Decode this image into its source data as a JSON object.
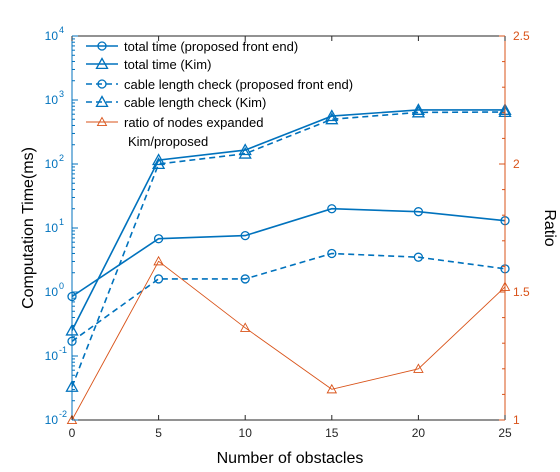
{
  "chart_data": {
    "type": "line",
    "xlabel": "Number of obstacles",
    "ylabel_left": "Computation Time(ms)",
    "ylabel_right": "Ratio",
    "x": [
      0,
      5,
      10,
      15,
      20,
      25
    ],
    "xlim": [
      0,
      25
    ],
    "xticks": [
      "0",
      "5",
      "10",
      "15",
      "20",
      "25"
    ],
    "ylim_left": [
      0.01,
      10000
    ],
    "yscale_left": "log",
    "yticks_left": [
      {
        "base": "10",
        "exp": "-2"
      },
      {
        "base": "10",
        "exp": "-1"
      },
      {
        "base": "10",
        "exp": "0"
      },
      {
        "base": "10",
        "exp": "1"
      },
      {
        "base": "10",
        "exp": "2"
      },
      {
        "base": "10",
        "exp": "3"
      },
      {
        "base": "10",
        "exp": "4"
      }
    ],
    "ylim_right": [
      1,
      2.5
    ],
    "yticks_right": [
      "1",
      "1.5",
      "2",
      "2.5"
    ],
    "colors": {
      "blue": "#0072BD",
      "orange": "#D95319"
    },
    "series": [
      {
        "name": "total time (proposed front end)",
        "axis": "left",
        "marker": "circle",
        "dash": false,
        "color": "#0072BD",
        "values": [
          0.85,
          6.8,
          7.6,
          20,
          18,
          13
        ]
      },
      {
        "name": "total time (Kim)",
        "axis": "left",
        "marker": "triangle",
        "dash": false,
        "color": "#0072BD",
        "values": [
          0.25,
          115,
          165,
          560,
          700,
          700
        ]
      },
      {
        "name": "cable length check (proposed front end)",
        "axis": "left",
        "marker": "circle",
        "dash": true,
        "color": "#0072BD",
        "values": [
          0.17,
          1.6,
          1.6,
          4.0,
          3.5,
          2.3
        ]
      },
      {
        "name": "cable length check (Kim)",
        "axis": "left",
        "marker": "triangle",
        "dash": true,
        "color": "#0072BD",
        "values": [
          0.033,
          100,
          145,
          500,
          640,
          650
        ]
      },
      {
        "name": "ratio of nodes expanded",
        "name2": "Kim/proposed",
        "axis": "right",
        "marker": "triangle-small",
        "dash": false,
        "color": "#D95319",
        "values": [
          1.0,
          1.62,
          1.36,
          1.12,
          1.2,
          1.52
        ]
      }
    ],
    "legend": "top-left, inside"
  }
}
